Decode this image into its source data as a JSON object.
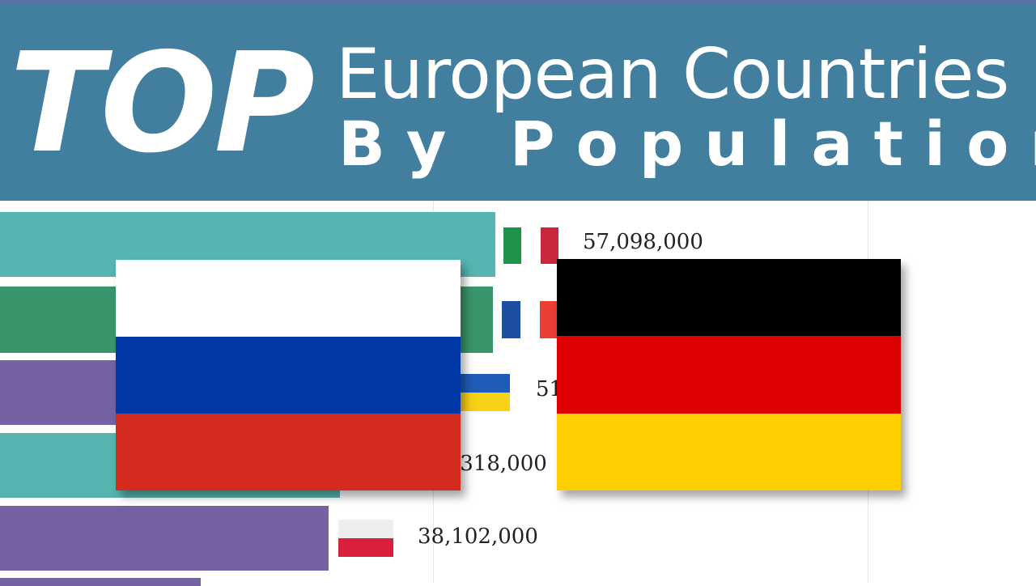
{
  "header": {
    "top_word": "TOP",
    "title_line1": "European Countries",
    "title_line2": "By Population"
  },
  "colors": {
    "header_bg": "#427f9e",
    "teal_bar": "#56b5b0",
    "green_bar": "#39966b",
    "purple_bar": "#7562a3"
  },
  "bars": [
    {
      "value_label": "57,098,000"
    },
    {
      "value_label": ""
    },
    {
      "value_label": "51"
    },
    {
      "value_label": ",318,000"
    },
    {
      "value_label": "38,102,000"
    }
  ],
  "flags": {
    "big_left": "russia-flag",
    "big_right": "germany-flag",
    "small": [
      "italy-flag",
      "france-flag",
      "ukraine-flag",
      "poland-flag"
    ]
  }
}
